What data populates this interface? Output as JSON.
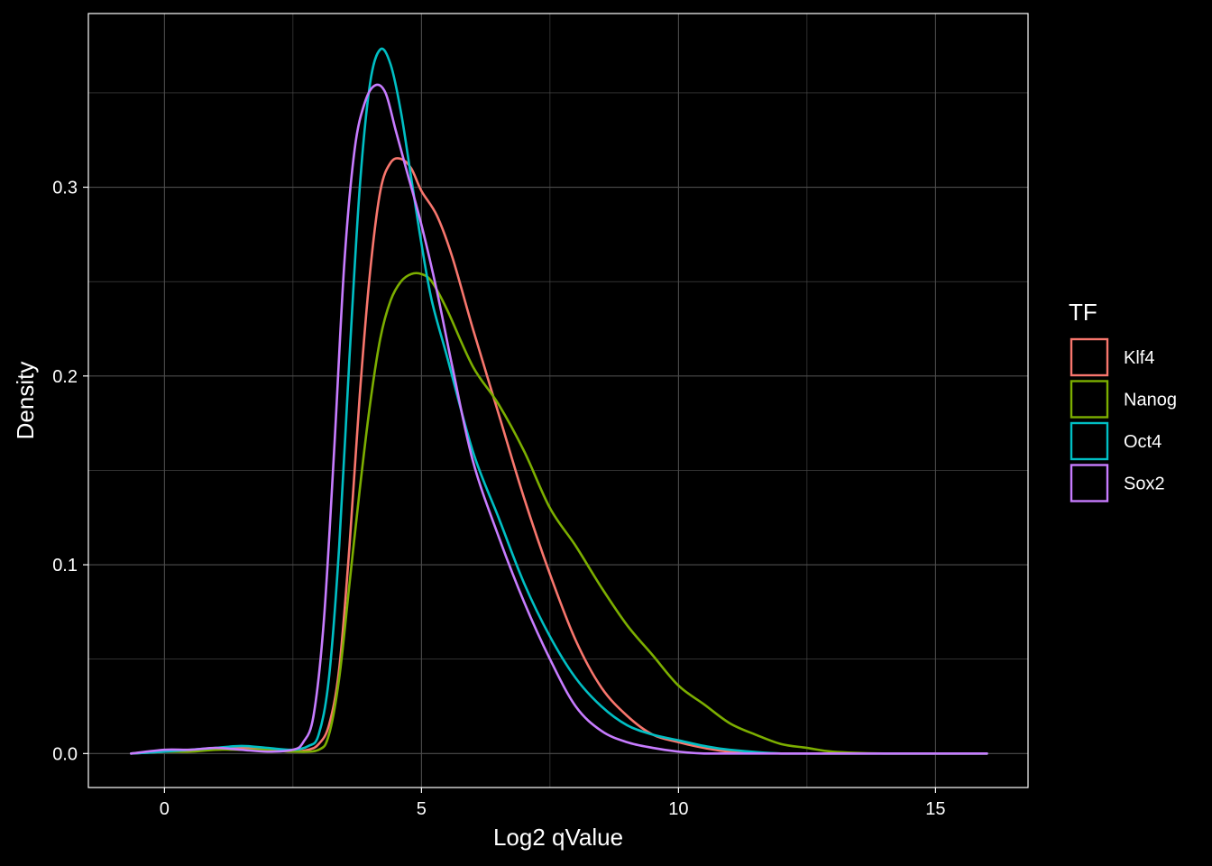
{
  "chart_data": {
    "type": "line",
    "title": "",
    "xlabel": "Log2 qValue",
    "ylabel": "Density",
    "xlim": [
      -1.48,
      16.8
    ],
    "ylim": [
      -0.018,
      0.392
    ],
    "x_ticks": [
      0,
      5,
      10,
      15
    ],
    "x_tick_labels": [
      "0",
      "5",
      "10",
      "15"
    ],
    "y_ticks": [
      0.0,
      0.1,
      0.2,
      0.3
    ],
    "y_tick_labels": [
      "0.0",
      "0.1",
      "0.2",
      "0.3"
    ],
    "grid": true,
    "background": "#000000",
    "grid_color": "#4d4d4d",
    "legend": {
      "title": "TF",
      "position": "right"
    },
    "series": [
      {
        "name": "Klf4",
        "color": "#F8766D",
        "x": [
          -0.65,
          0,
          0.5,
          1,
          1.5,
          2,
          2.5,
          2.8,
          3,
          3.2,
          3.4,
          3.6,
          3.8,
          4,
          4.2,
          4.4,
          4.6,
          4.8,
          5,
          5.3,
          5.6,
          6,
          6.5,
          7,
          7.5,
          8,
          8.5,
          9,
          9.5,
          10,
          10.5,
          11,
          12,
          13,
          14,
          15,
          16
        ],
        "y": [
          0,
          0.001,
          0.002,
          0.002,
          0.003,
          0.002,
          0.001,
          0.002,
          0.005,
          0.015,
          0.045,
          0.11,
          0.19,
          0.255,
          0.298,
          0.313,
          0.315,
          0.31,
          0.298,
          0.285,
          0.263,
          0.225,
          0.18,
          0.135,
          0.095,
          0.06,
          0.035,
          0.02,
          0.01,
          0.006,
          0.003,
          0.001,
          0,
          0,
          0,
          0,
          0
        ]
      },
      {
        "name": "Nanog",
        "color": "#7CAE00",
        "x": [
          -0.65,
          0,
          0.5,
          1,
          1.5,
          2,
          2.5,
          3,
          3.2,
          3.4,
          3.6,
          3.8,
          4,
          4.2,
          4.4,
          4.6,
          4.8,
          5,
          5.2,
          5.5,
          6,
          6.5,
          7,
          7.5,
          8,
          8.5,
          9,
          9.5,
          10,
          10.5,
          11,
          11.5,
          12,
          12.5,
          13,
          14,
          15,
          16
        ],
        "y": [
          0,
          0.001,
          0.001,
          0.002,
          0.002,
          0.002,
          0.001,
          0.002,
          0.01,
          0.04,
          0.09,
          0.14,
          0.185,
          0.22,
          0.24,
          0.25,
          0.254,
          0.254,
          0.25,
          0.235,
          0.205,
          0.185,
          0.16,
          0.13,
          0.11,
          0.088,
          0.068,
          0.052,
          0.036,
          0.026,
          0.016,
          0.01,
          0.005,
          0.003,
          0.001,
          0,
          0,
          0
        ]
      },
      {
        "name": "Oct4",
        "color": "#00BFC4",
        "x": [
          -0.65,
          0,
          0.5,
          1,
          1.5,
          2,
          2.5,
          2.8,
          3,
          3.2,
          3.4,
          3.6,
          3.8,
          4,
          4.2,
          4.4,
          4.6,
          4.8,
          5,
          5.2,
          5.5,
          6,
          6.5,
          7,
          7.5,
          8,
          8.5,
          9,
          9.5,
          10,
          10.5,
          11,
          12,
          13,
          14,
          15,
          16
        ],
        "y": [
          0,
          0.001,
          0.002,
          0.003,
          0.004,
          0.003,
          0.002,
          0.004,
          0.01,
          0.04,
          0.11,
          0.21,
          0.3,
          0.355,
          0.373,
          0.365,
          0.34,
          0.305,
          0.27,
          0.24,
          0.21,
          0.16,
          0.125,
          0.09,
          0.062,
          0.04,
          0.025,
          0.015,
          0.01,
          0.007,
          0.004,
          0.002,
          0,
          0,
          0,
          0,
          0
        ]
      },
      {
        "name": "Sox2",
        "color": "#C77CFF",
        "x": [
          -0.65,
          0,
          0.5,
          1,
          1.5,
          2,
          2.5,
          2.7,
          2.9,
          3.1,
          3.3,
          3.5,
          3.7,
          3.9,
          4.1,
          4.3,
          4.5,
          4.7,
          5,
          5.3,
          5.6,
          6,
          6.5,
          7,
          7.5,
          8,
          8.5,
          9,
          9.5,
          10,
          10.5,
          11,
          12,
          13,
          14,
          15,
          16
        ],
        "y": [
          0,
          0.002,
          0.002,
          0.003,
          0.002,
          0.001,
          0.002,
          0.006,
          0.02,
          0.07,
          0.16,
          0.26,
          0.32,
          0.345,
          0.354,
          0.35,
          0.33,
          0.31,
          0.28,
          0.245,
          0.205,
          0.155,
          0.115,
          0.08,
          0.05,
          0.025,
          0.012,
          0.006,
          0.003,
          0.001,
          0,
          0,
          0,
          0,
          0,
          0,
          0
        ]
      }
    ]
  }
}
